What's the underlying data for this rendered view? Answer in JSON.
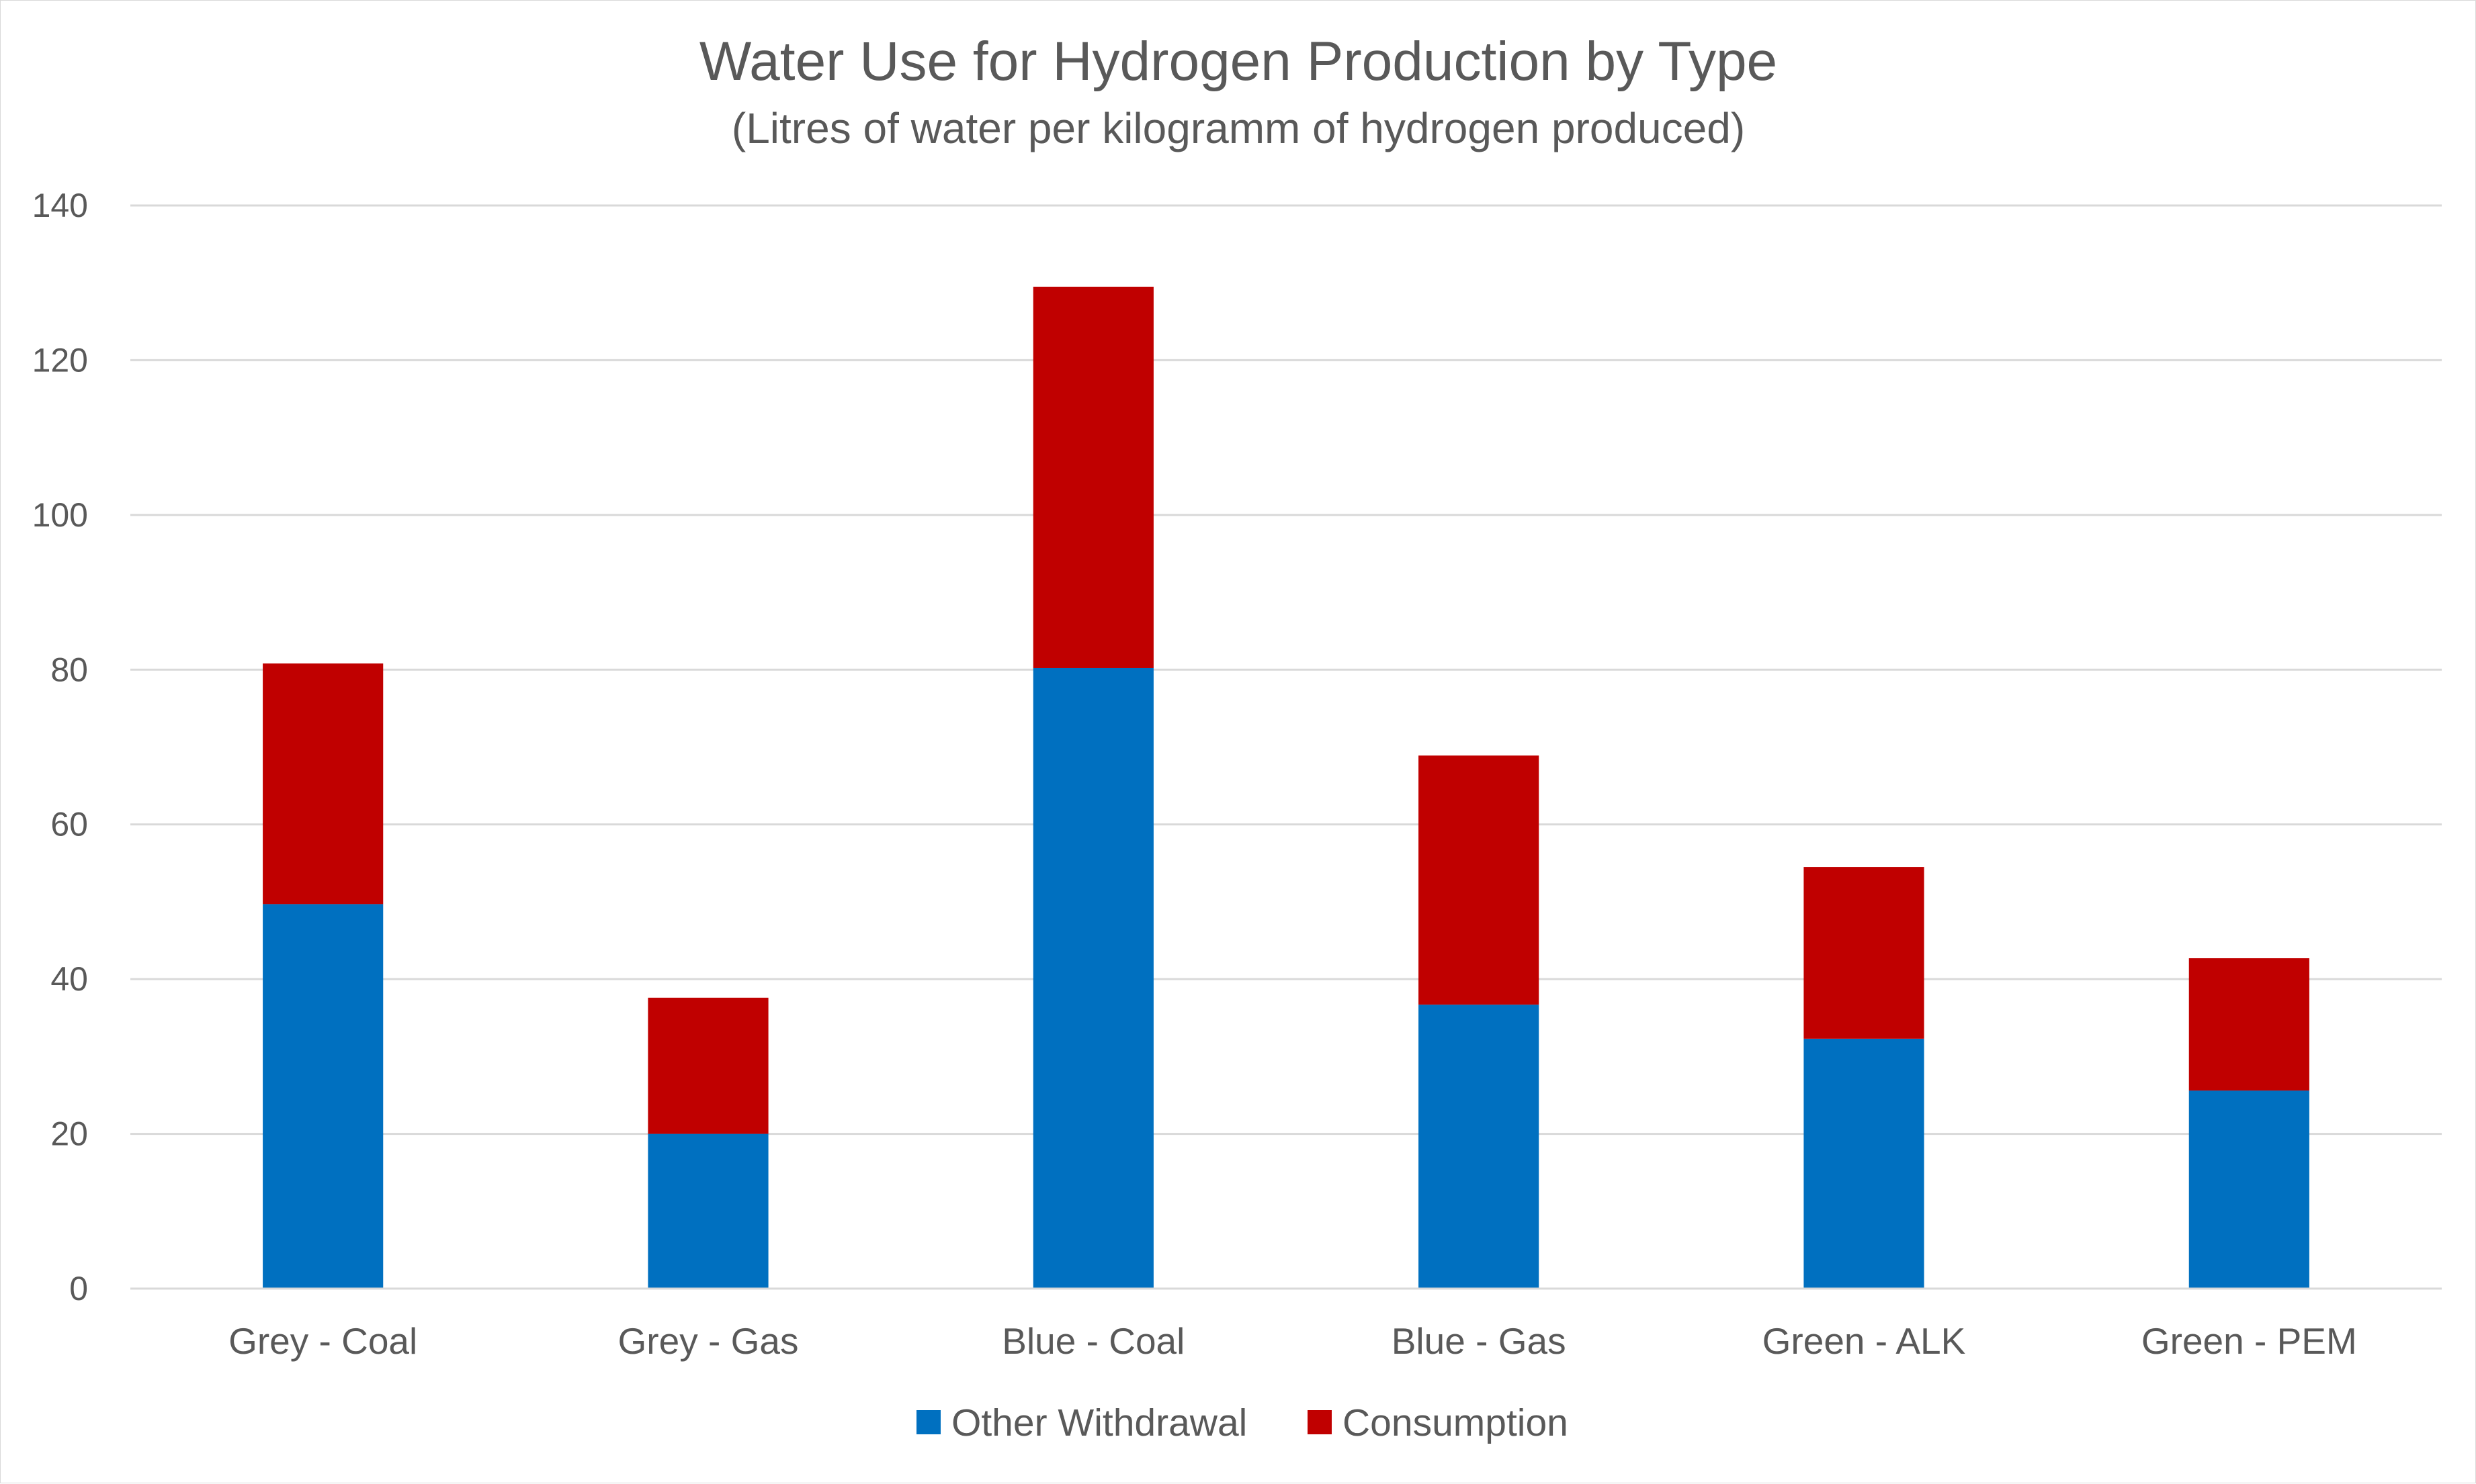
{
  "chart_data": {
    "type": "bar",
    "stacked": true,
    "title": "Water Use for Hydrogen Production by Type",
    "subtitle": "(Litres of water per kilogramm of hydrogen produced)",
    "categories": [
      "Grey - Coal",
      "Grey - Gas",
      "Blue - Coal",
      "Blue - Gas",
      "Green - ALK",
      "Green - PEM"
    ],
    "series": [
      {
        "name": "Other Withdrawal",
        "color": "#0070c0",
        "values": [
          49.7,
          20,
          80.2,
          36.7,
          32.3,
          25.6
        ]
      },
      {
        "name": "Consumption",
        "color": "#c00000",
        "values": [
          31.1,
          17.6,
          49.3,
          32.2,
          22.2,
          17.1
        ]
      }
    ],
    "ylim": [
      0,
      140
    ],
    "yticks": [
      "0",
      "20",
      "40",
      "60",
      "80",
      "100",
      "120",
      "140"
    ],
    "grid": true,
    "legend": "bottom"
  }
}
